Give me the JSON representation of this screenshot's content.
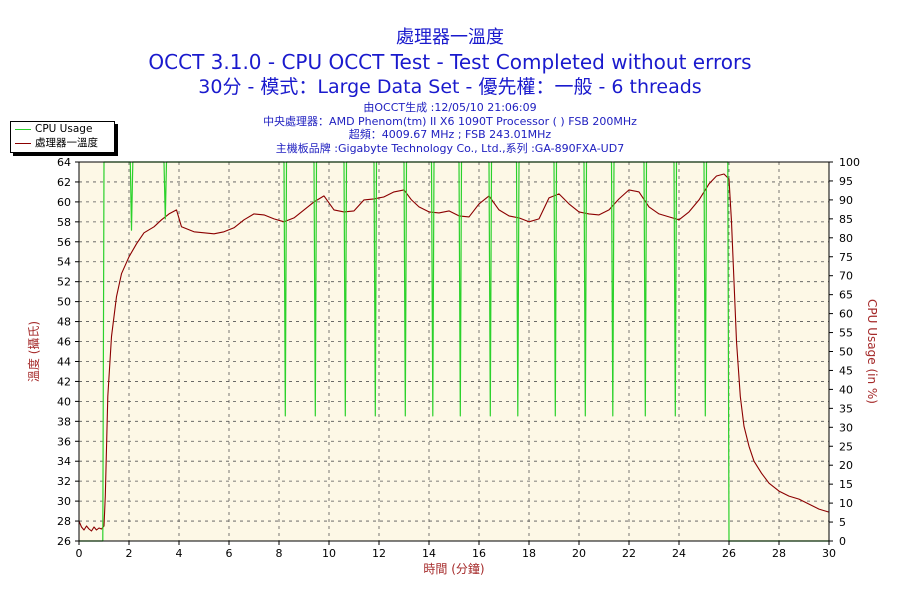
{
  "header": {
    "title": "處理器一溫度",
    "subtitle": "OCCT 3.1.0 - CPU OCCT Test - Test Completed without errors",
    "mode_line": "30分 - 模式：Large Data Set - 優先權：一般 - 6 threads"
  },
  "info": {
    "generated": "由OCCT生成 :12/05/10 21:06:09",
    "cpu": "中央處理器：AMD Phenom(tm) II X6 1090T Processor (  ) FSB 200MHz",
    "overclock": "超頻：4009.67 MHz ; FSB 243.01MHz",
    "motherboard": "主機板品牌 :Gigabyte Technology Co., Ltd.,系列 :GA-890FXA-UD7"
  },
  "legend": [
    "CPU Usage",
    "處理器一溫度"
  ],
  "colors": {
    "title": "#1a1acd",
    "cpu_usage": "#2bd12b",
    "temperature": "#8b0000",
    "plot_bg": "#fdf8e6",
    "axis_label": "#a52a2a"
  },
  "chart_data": {
    "type": "line",
    "xlabel": "時間 (分鐘)",
    "ylabel_left": "溫度 (攝氏)",
    "ylabel_right": "CPU Usage (in %)",
    "xlim": [
      0,
      30
    ],
    "ylim_left": [
      26,
      64
    ],
    "ylim_right": [
      0,
      100
    ],
    "x_ticks": [
      0,
      2,
      4,
      6,
      8,
      10,
      12,
      14,
      16,
      18,
      20,
      22,
      24,
      26,
      28,
      30
    ],
    "y_left_ticks": [
      26,
      28,
      30,
      32,
      34,
      36,
      38,
      40,
      42,
      44,
      46,
      48,
      50,
      52,
      54,
      56,
      58,
      60,
      62,
      64
    ],
    "y_right_ticks": [
      0,
      5,
      10,
      15,
      20,
      25,
      30,
      35,
      40,
      45,
      50,
      55,
      60,
      65,
      70,
      75,
      80,
      85,
      90,
      95,
      100
    ],
    "grid": true,
    "legend_position": "top-left",
    "series": [
      {
        "name": "處理器一溫度",
        "axis": "left",
        "x": [
          0,
          0.1,
          0.2,
          0.3,
          0.4,
          0.5,
          0.6,
          0.7,
          0.8,
          0.9,
          1.0,
          1.05,
          1.15,
          1.3,
          1.5,
          1.7,
          2.0,
          2.3,
          2.6,
          3.0,
          3.3,
          3.6,
          3.9,
          4.1,
          4.3,
          4.6,
          5.0,
          5.4,
          5.8,
          6.2,
          6.6,
          7.0,
          7.4,
          7.8,
          8.2,
          8.6,
          9.0,
          9.4,
          9.8,
          10.2,
          10.6,
          11.0,
          11.4,
          11.8,
          12.2,
          12.6,
          13.0,
          13.3,
          13.6,
          14.0,
          14.4,
          14.8,
          15.2,
          15.6,
          16.0,
          16.4,
          16.8,
          17.2,
          17.6,
          18.0,
          18.4,
          18.8,
          19.2,
          19.6,
          20.0,
          20.4,
          20.8,
          21.2,
          21.6,
          22.0,
          22.4,
          22.8,
          23.2,
          23.6,
          24.0,
          24.4,
          24.8,
          25.2,
          25.5,
          25.8,
          26.0,
          26.1,
          26.2,
          26.3,
          26.45,
          26.6,
          26.8,
          27.0,
          27.3,
          27.6,
          28.0,
          28.4,
          28.8,
          29.2,
          29.6,
          30.0
        ],
        "y": [
          28.0,
          27.4,
          27.1,
          27.5,
          27.2,
          27.0,
          27.4,
          27.1,
          27.3,
          27.2,
          27.5,
          30.5,
          40.5,
          46.5,
          50.5,
          52.8,
          54.5,
          55.8,
          56.9,
          57.5,
          58.2,
          58.8,
          59.2,
          57.5,
          57.3,
          57.0,
          56.9,
          56.8,
          57.0,
          57.4,
          58.2,
          58.8,
          58.7,
          58.3,
          58.0,
          58.4,
          59.2,
          60.0,
          60.6,
          59.2,
          59.0,
          59.1,
          60.2,
          60.3,
          60.5,
          61.0,
          61.2,
          60.2,
          59.5,
          59.0,
          58.9,
          59.1,
          58.6,
          58.5,
          59.8,
          60.6,
          59.2,
          58.6,
          58.4,
          58.0,
          58.3,
          60.4,
          60.8,
          59.8,
          59.0,
          58.8,
          58.7,
          59.2,
          60.3,
          61.2,
          61.0,
          59.5,
          58.8,
          58.5,
          58.2,
          59.0,
          60.2,
          61.8,
          62.6,
          62.8,
          62.3,
          58.0,
          52.0,
          46.0,
          40.5,
          37.5,
          35.5,
          34.0,
          32.8,
          31.8,
          31.0,
          30.5,
          30.2,
          29.7,
          29.2,
          28.9
        ]
      },
      {
        "name": "CPU Usage",
        "axis": "right",
        "x": [
          0,
          0.95,
          1.0,
          1.05,
          1.1,
          1.2,
          2.05,
          2.1,
          2.15,
          3.4,
          3.45,
          3.5,
          8.2,
          8.25,
          8.3,
          9.4,
          9.45,
          9.5,
          10.6,
          10.65,
          10.7,
          11.8,
          11.85,
          11.9,
          13.0,
          13.05,
          13.1,
          14.1,
          14.15,
          14.2,
          15.2,
          15.25,
          15.3,
          16.4,
          16.45,
          16.5,
          17.5,
          17.55,
          17.6,
          19.0,
          19.05,
          19.1,
          20.2,
          20.25,
          20.3,
          21.3,
          21.35,
          21.4,
          22.6,
          22.65,
          22.7,
          23.8,
          23.85,
          23.9,
          25.0,
          25.05,
          25.1,
          25.95,
          26.0,
          26.05,
          26.1,
          30.0
        ],
        "y": [
          0,
          0,
          100,
          100,
          100,
          100,
          100,
          82,
          100,
          100,
          85,
          100,
          100,
          33,
          100,
          100,
          33,
          100,
          100,
          33,
          100,
          100,
          33,
          100,
          100,
          33,
          100,
          100,
          33,
          100,
          100,
          33,
          100,
          100,
          33,
          100,
          100,
          33,
          100,
          100,
          33,
          100,
          100,
          33,
          100,
          100,
          33,
          100,
          100,
          33,
          100,
          100,
          33,
          100,
          100,
          33,
          100,
          100,
          0,
          0,
          0,
          0
        ]
      }
    ]
  }
}
